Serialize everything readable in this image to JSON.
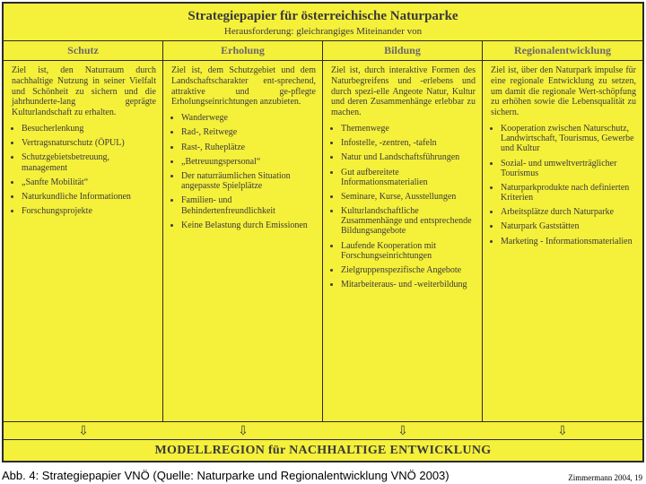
{
  "colors": {
    "background": "#f5f03a",
    "border": "#2a2a2a",
    "heading": "#6a6a6a",
    "text": "#3a3a3a"
  },
  "fonts": {
    "title_pt": 15,
    "subtitle_pt": 11,
    "header_pt": 12,
    "body_pt": 10,
    "footer_pt": 14,
    "caption_pt": 13,
    "source_pt": 9,
    "arrow_pt": 14
  },
  "title": "Strategiepapier für österreichische Naturparke",
  "subtitle": "Herausforderung: gleichrangiges Miteinander von",
  "columns": [
    {
      "header": "Schutz",
      "goal": "Ziel ist, den Naturraum durch nachhaltige Nutzung in seiner Vielfalt und Schönheit zu sichern und die jahrhunderte-lang geprägte Kulturlandschaft zu erhalten.",
      "items": [
        "Besucherlenkung",
        "Vertragsnaturschutz (ÖPUL)",
        "Schutzgebietsbetreuung, management",
        "„Sanfte Mobilität“",
        "Naturkundliche Informationen",
        "Forschungsprojekte"
      ]
    },
    {
      "header": "Erholung",
      "goal": "Ziel ist, dem Schutzgebiet und dem Landschaftscharakter ent-sprechend, attraktive und ge-pflegte Erholungseinrichtungen anzubieten.",
      "items": [
        "Wanderwege",
        "Rad-, Reitwege",
        "Rast-, Ruheplätze",
        "„Betreuungspersonal“",
        "Der naturräumlichen Situation angepasste Spielplätze",
        "Familien- und Behindertenfreundlichkeit",
        "Keine Belastung durch Emissionen"
      ]
    },
    {
      "header": "Bildung",
      "goal": "Ziel ist, durch interaktive Formen des Naturbegreifens und -erlebens und durch spezi-elle Angeote Natur, Kultur und deren Zusammenhänge erlebbar zu machen.",
      "items": [
        "Themenwege",
        "Infostelle, -zentren, -tafeln",
        "Natur und Landschaftsführungen",
        "Gut aufbereitete Informationsmaterialien",
        "Seminare, Kurse, Ausstellungen",
        "Kulturlandschaftliche Zusammenhänge und entsprechende Bildungsangebote",
        "Laufende Kooperation mit Forschungseinrichtungen",
        "Zielgruppenspezifische Angebote",
        "Mitarbeiteraus- und -weiterbildung"
      ]
    },
    {
      "header": "Regionalentwicklung",
      "goal": "Ziel ist, über den Naturpark impulse für eine regionale Entwicklung zu setzen, um damit die regionale Wert-schöpfung zu erhöhen sowie die Lebensqualität zu sichern.",
      "items": [
        "Kooperation zwischen Naturschutz, Landwirtschaft, Tourismus, Gewerbe und Kultur",
        "Sozial- und umweltverträglicher Tourismus",
        "Naturparkprodukte nach definierten Kriterien",
        "Arbeitsplätze durch Naturparke",
        "Naturpark Gaststätten",
        "Marketing - Informationsmaterialien"
      ]
    }
  ],
  "arrow_glyph": "⇩",
  "footer": "MODELLREGION für NACHHALTIGE ENTWICKLUNG",
  "caption": "Abb. 4: Strategiepapier VNÖ (Quelle: Naturparke und Regionalentwicklung VNÖ 2003)",
  "source": "Zimmermann 2004, 19"
}
